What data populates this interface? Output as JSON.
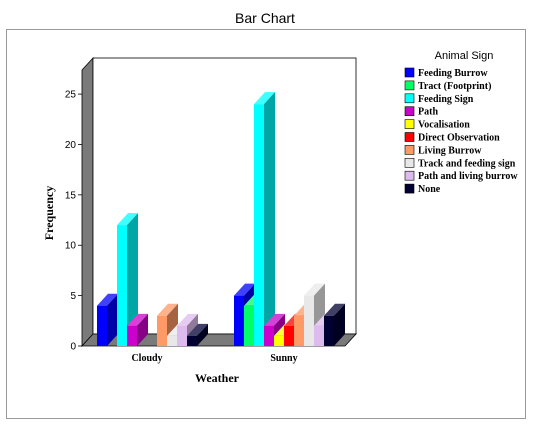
{
  "chart_data": {
    "type": "bar",
    "title": "Bar Chart",
    "xlabel": "Weather",
    "ylabel": "Frequency",
    "ylim": [
      0,
      25
    ],
    "yticks": [
      0,
      5,
      10,
      15,
      20,
      25
    ],
    "categories": [
      "Cloudy",
      "Sunny"
    ],
    "legend_title": "Animal Sign",
    "legend_position": "right",
    "grid": false,
    "style": "3d",
    "series": [
      {
        "name": "Feeding Burrow",
        "color": "#0000ff",
        "values": [
          4,
          5
        ]
      },
      {
        "name": "Tract (Footprint)",
        "color": "#00ff66",
        "values": [
          0,
          4
        ]
      },
      {
        "name": "Feeding Sign",
        "color": "#00ffff",
        "values": [
          12,
          24
        ]
      },
      {
        "name": "Path",
        "color": "#cc00cc",
        "values": [
          2,
          2
        ]
      },
      {
        "name": "Vocalisation",
        "color": "#ffff00",
        "values": [
          0,
          1
        ]
      },
      {
        "name": "Direct  Observation",
        "color": "#ff0000",
        "values": [
          0,
          2
        ]
      },
      {
        "name": "Living Burrow",
        "color": "#ff9966",
        "values": [
          3,
          3
        ]
      },
      {
        "name": "Track and feeding sign",
        "color": "#e8e8e8",
        "values": [
          1,
          5
        ]
      },
      {
        "name": "Path and living burrow",
        "color": "#ddbbee",
        "values": [
          2,
          2
        ]
      },
      {
        "name": "None",
        "color": "#000033",
        "values": [
          1,
          3
        ]
      }
    ]
  }
}
